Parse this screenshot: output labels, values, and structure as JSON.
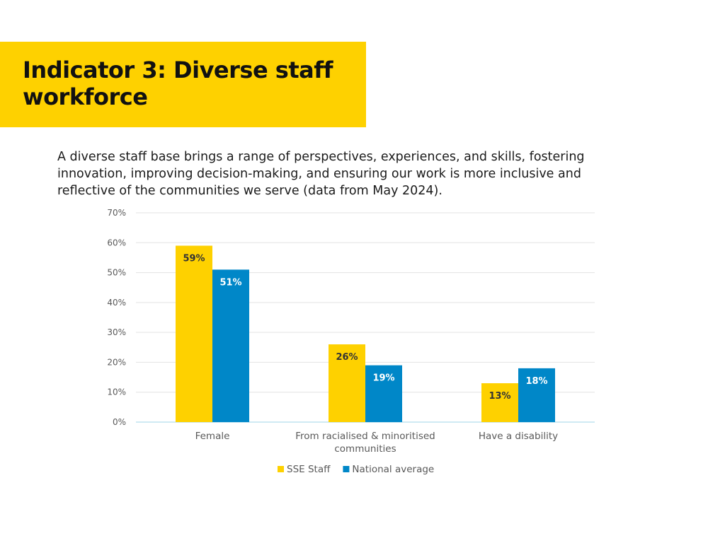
{
  "header": {
    "title": "Indicator 3: Diverse staff workforce"
  },
  "intro": {
    "text": "A diverse staff base brings a range of perspectives, experiences, and skills, fostering innovation, improving decision-making, and ensuring our work is more inclusive and reflective of the communities we serve (data from May 2024)."
  },
  "colors": {
    "banner": "#FED100",
    "sse_staff": "#FED100",
    "national_average": "#0087C8"
  },
  "chart_data": {
    "type": "bar",
    "title": "",
    "xlabel": "",
    "ylabel": "",
    "ylim": [
      0,
      70
    ],
    "yticks": [
      0,
      10,
      20,
      30,
      40,
      50,
      60,
      70
    ],
    "ytick_labels": [
      "0%",
      "10%",
      "20%",
      "30%",
      "40%",
      "50%",
      "60%",
      "70%"
    ],
    "grid": true,
    "legend": "bottom",
    "categories": [
      [
        "Female"
      ],
      [
        "From racialised & minoritised",
        "communities"
      ],
      [
        "Have a disability"
      ]
    ],
    "series": [
      {
        "name": "SSE Staff",
        "color": "#FED100",
        "values": [
          59,
          26,
          13
        ],
        "labels": [
          "59%",
          "26%",
          "13%"
        ]
      },
      {
        "name": "National average",
        "color": "#0087C8",
        "values": [
          51,
          19,
          18
        ],
        "labels": [
          "51%",
          "19%",
          "18%"
        ]
      }
    ]
  }
}
